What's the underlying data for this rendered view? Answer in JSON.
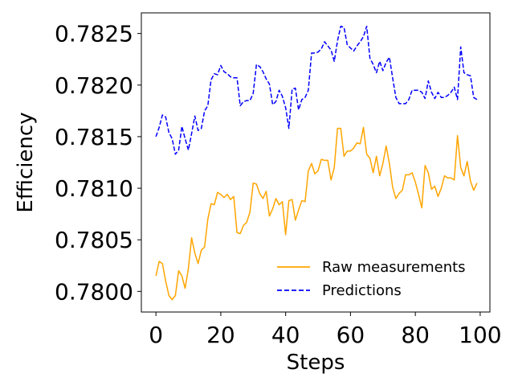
{
  "chart_data": {
    "type": "line",
    "title": "",
    "xlabel": "Steps",
    "ylabel": "Efficiency",
    "xlim": [
      -4.5,
      103
    ],
    "ylim": [
      0.7798,
      0.7827
    ],
    "xticks": [
      0,
      20,
      40,
      60,
      80,
      100
    ],
    "yticks": [
      0.78,
      0.7805,
      0.781,
      0.7815,
      0.782,
      0.7825
    ],
    "ytick_labels": [
      "0.7800",
      "0.7805",
      "0.7810",
      "0.7815",
      "0.7820",
      "0.7825"
    ],
    "grid": false,
    "legend_position": "lower-right",
    "series": [
      {
        "name": "Raw measurements",
        "color": "#FFA500",
        "style": "solid",
        "values": [
          0.78015,
          0.78029,
          0.78027,
          0.7801,
          0.77996,
          0.77992,
          0.77996,
          0.7802,
          0.78015,
          0.78003,
          0.78022,
          0.78052,
          0.78037,
          0.78027,
          0.7804,
          0.78043,
          0.7807,
          0.78085,
          0.78084,
          0.78096,
          0.78094,
          0.78091,
          0.78094,
          0.78089,
          0.78092,
          0.78057,
          0.78056,
          0.78064,
          0.78067,
          0.78077,
          0.78105,
          0.78104,
          0.78095,
          0.7809,
          0.78097,
          0.78073,
          0.7808,
          0.7809,
          0.78084,
          0.78087,
          0.78055,
          0.78088,
          0.78089,
          0.78069,
          0.78079,
          0.78088,
          0.78087,
          0.78117,
          0.78124,
          0.78114,
          0.78117,
          0.78128,
          0.78127,
          0.78127,
          0.78108,
          0.7812,
          0.78158,
          0.78158,
          0.78131,
          0.78136,
          0.78136,
          0.78139,
          0.78144,
          0.78143,
          0.78159,
          0.78133,
          0.78129,
          0.78115,
          0.78131,
          0.78112,
          0.78124,
          0.78141,
          0.78124,
          0.78101,
          0.7809,
          0.78095,
          0.78098,
          0.78113,
          0.78113,
          0.78115,
          0.78106,
          0.78094,
          0.78081,
          0.78122,
          0.78115,
          0.78099,
          0.78102,
          0.78092,
          0.781,
          0.78112,
          0.7811,
          0.7811,
          0.78108,
          0.78151,
          0.7812,
          0.78112,
          0.78126,
          0.78107,
          0.78098,
          0.78105
        ]
      },
      {
        "name": "Predictions",
        "color": "#0000FF",
        "style": "dashed",
        "values": [
          0.7815,
          0.78159,
          0.78171,
          0.78169,
          0.78154,
          0.78148,
          0.78133,
          0.78137,
          0.7816,
          0.78148,
          0.78137,
          0.78153,
          0.7817,
          0.78156,
          0.78158,
          0.78175,
          0.7818,
          0.78205,
          0.78211,
          0.7821,
          0.78219,
          0.78213,
          0.78211,
          0.78208,
          0.78207,
          0.78207,
          0.7818,
          0.78184,
          0.78185,
          0.78185,
          0.78192,
          0.7822,
          0.78218,
          0.78213,
          0.78206,
          0.78201,
          0.78181,
          0.78184,
          0.78195,
          0.78189,
          0.78178,
          0.78158,
          0.78196,
          0.78197,
          0.78176,
          0.78186,
          0.78188,
          0.78195,
          0.78231,
          0.78231,
          0.78232,
          0.78235,
          0.78242,
          0.78238,
          0.78234,
          0.78223,
          0.78243,
          0.78257,
          0.78256,
          0.78239,
          0.78236,
          0.78233,
          0.78238,
          0.78242,
          0.78247,
          0.78257,
          0.78226,
          0.7822,
          0.78212,
          0.78223,
          0.78214,
          0.78222,
          0.78227,
          0.78207,
          0.78188,
          0.78182,
          0.78182,
          0.78182,
          0.78186,
          0.78195,
          0.78195,
          0.78195,
          0.78193,
          0.78187,
          0.78204,
          0.78193,
          0.78187,
          0.78193,
          0.78188,
          0.78188,
          0.7819,
          0.78193,
          0.78198,
          0.78186,
          0.78237,
          0.78212,
          0.7821,
          0.78209,
          0.78188,
          0.78186
        ]
      }
    ]
  }
}
